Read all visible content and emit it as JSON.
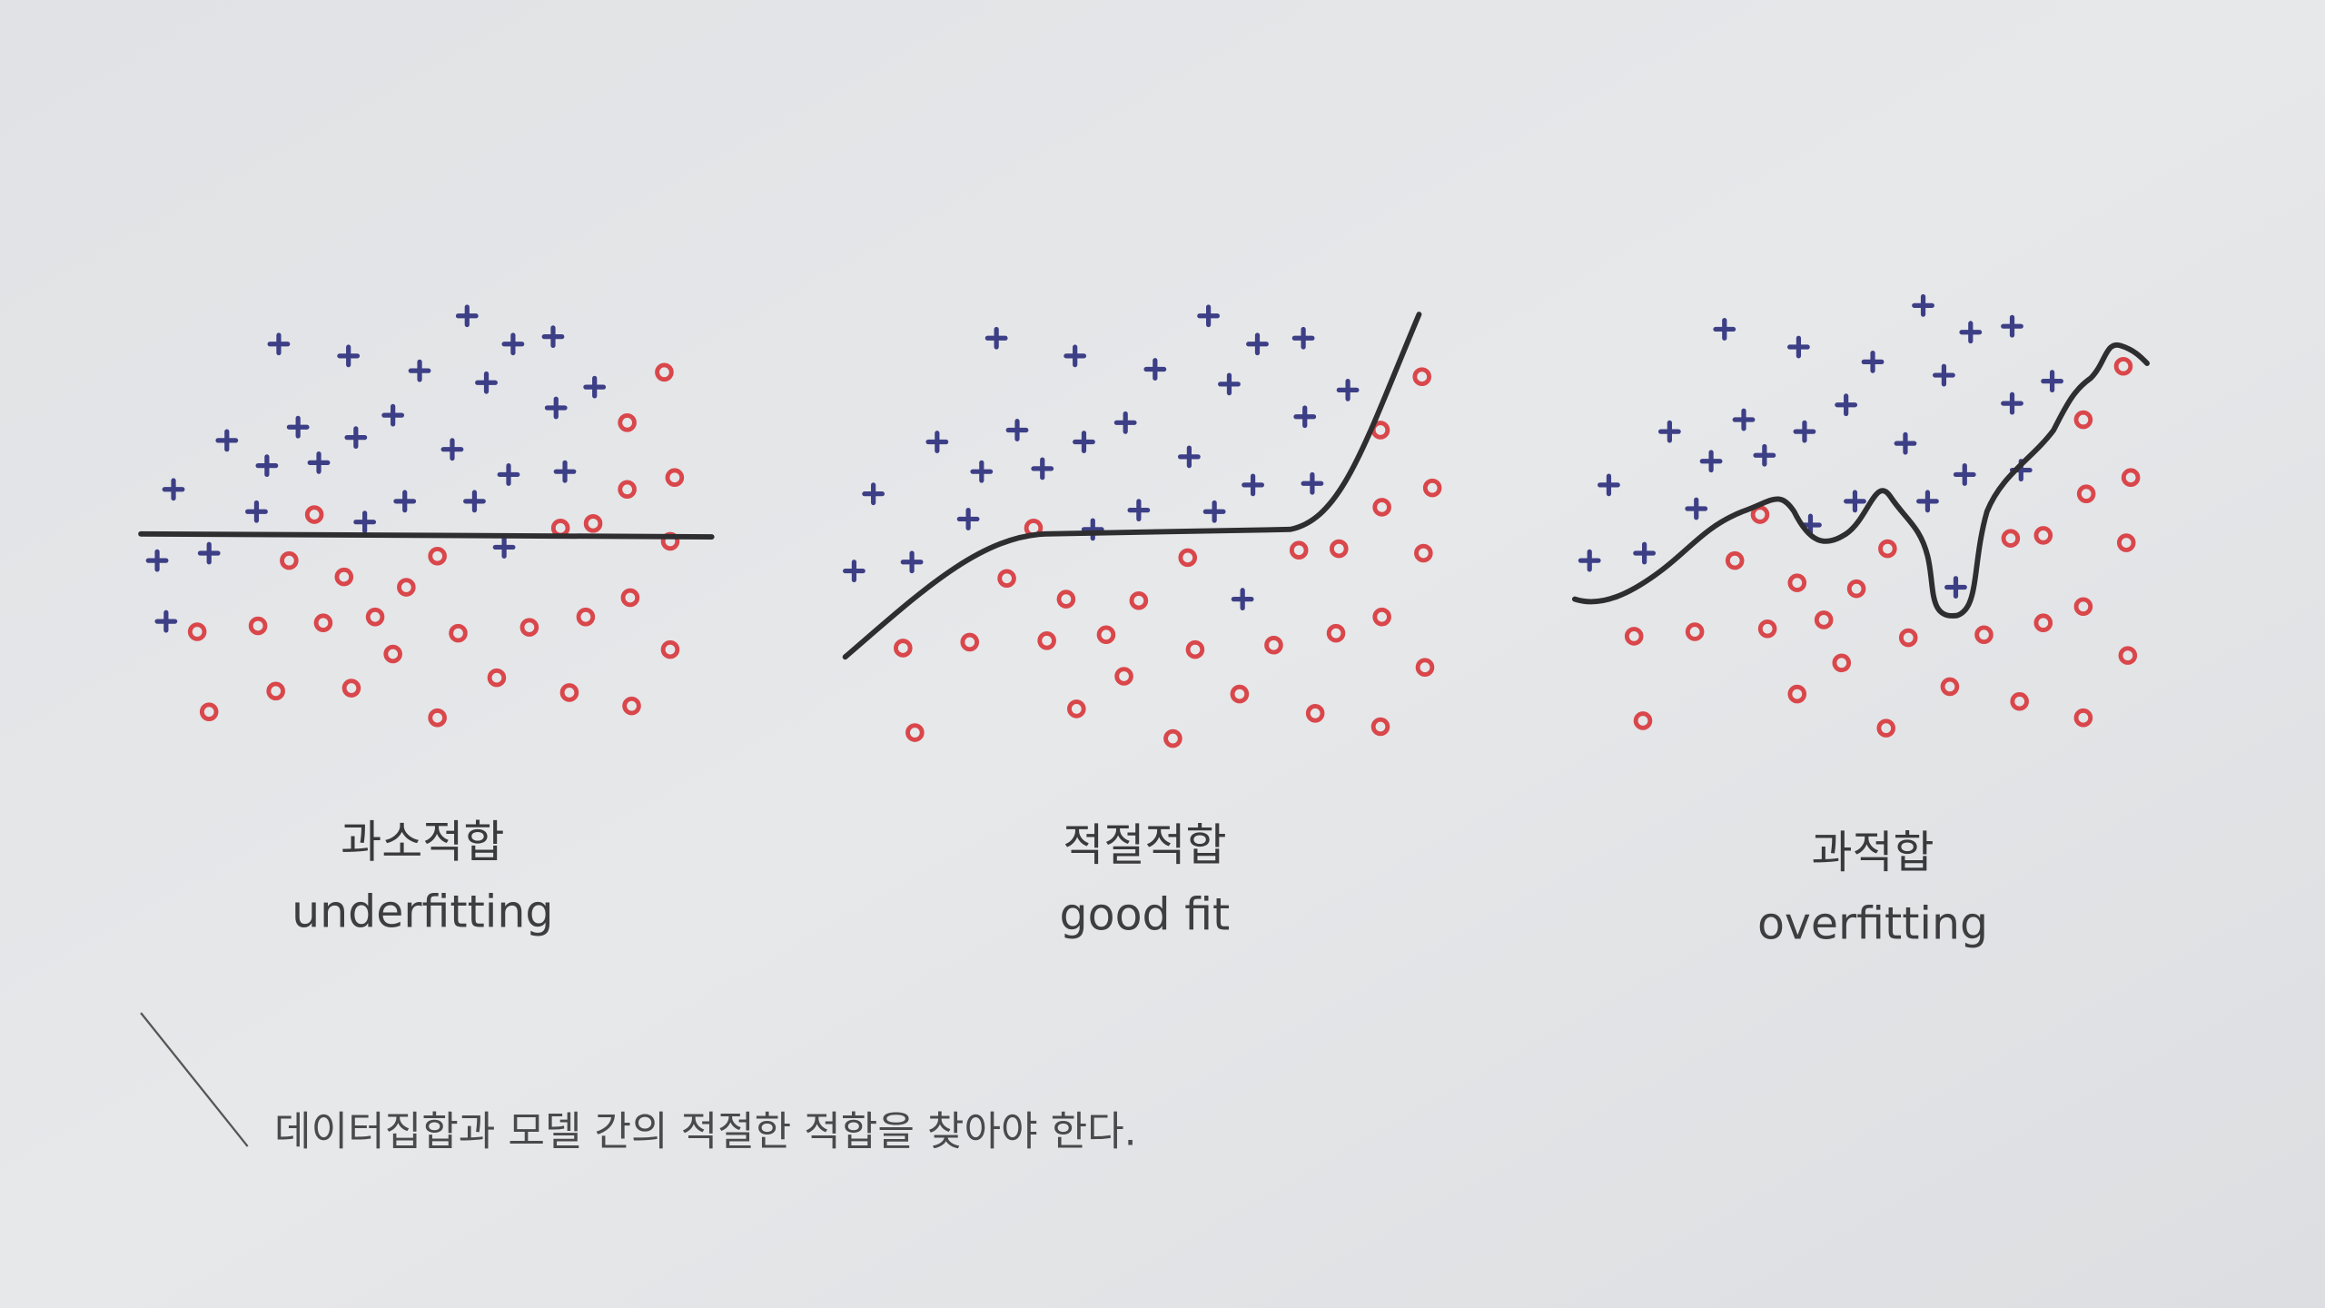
{
  "panels": [
    {
      "title": "과소적합",
      "subtitle": "underfitting"
    },
    {
      "title": "적절적합",
      "subtitle": "good fit"
    },
    {
      "title": "과적합",
      "subtitle": "overfitting"
    }
  ],
  "caption": "데이터집합과 모델 간의 적절한 적합을 찾아야 한다."
}
